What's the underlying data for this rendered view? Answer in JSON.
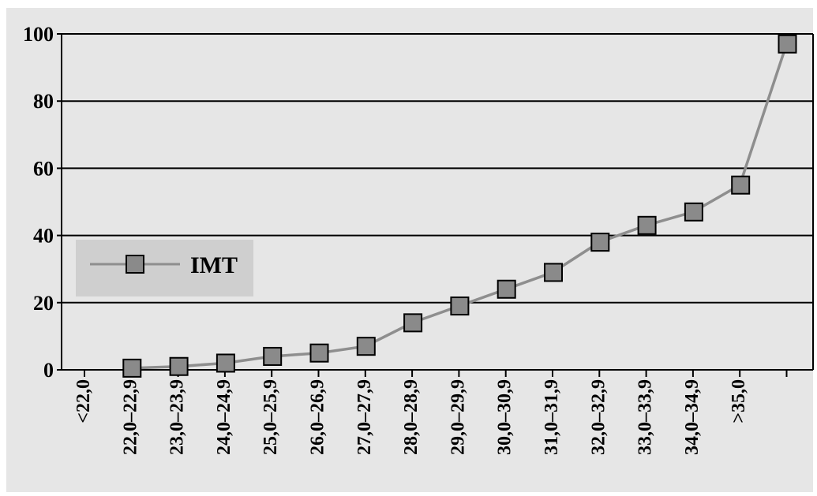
{
  "chart_data": {
    "type": "line",
    "title": "",
    "xlabel": "",
    "ylabel": "",
    "categories": [
      "<22,0",
      "22,0–22,9",
      "23,0–23,9",
      "24,0–24,9",
      "25,0–25,9",
      "26,0–26,9",
      "27,0–27,9",
      "28,0–28,9",
      "29,0–29,9",
      "30,0–30,9",
      "31,0–31,9",
      "32,0–32,9",
      "33,0–33,9",
      "34,0–34,9",
      ">35,0"
    ],
    "series": [
      {
        "name": "IMT",
        "values": [
          0.5,
          1,
          2,
          4,
          5,
          7,
          14,
          19,
          24,
          29,
          38,
          43,
          47,
          55,
          97
        ]
      }
    ],
    "ylim": [
      0,
      100
    ],
    "yticks": [
      0,
      20,
      40,
      60,
      80,
      100
    ],
    "grid": true,
    "legend_position": "left",
    "colors": {
      "background": "#e6e6e6",
      "plot_background": "#e6e6e6",
      "legend_background": "#cfcfcf",
      "line": "#8e8e8e",
      "marker_fill": "#8a8a8a",
      "marker_stroke": "#000000",
      "grid": "#000000"
    }
  }
}
